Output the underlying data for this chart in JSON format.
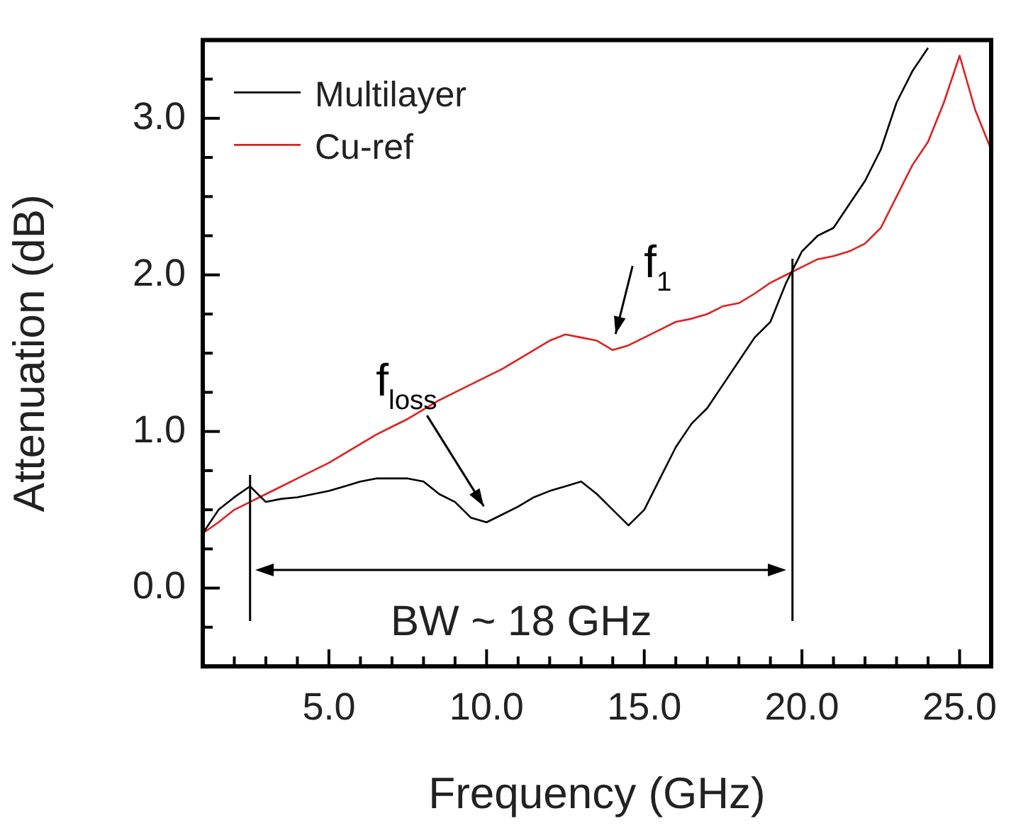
{
  "chart_data": {
    "type": "line",
    "xlabel": "Frequency (GHz)",
    "ylabel": "Attenuation (dB)",
    "x": [
      1,
      1.5,
      2,
      2.5,
      3,
      3.5,
      4,
      4.5,
      5,
      5.5,
      6,
      6.5,
      7,
      7.5,
      8,
      8.5,
      9,
      9.5,
      10,
      10.5,
      11,
      11.5,
      12,
      12.5,
      13,
      13.5,
      14,
      14.5,
      15,
      15.5,
      16,
      16.5,
      17,
      17.5,
      18,
      18.5,
      19,
      19.5,
      20,
      20.5,
      21,
      21.5,
      22,
      22.5,
      23,
      23.5,
      24,
      24.5,
      25,
      25.5,
      26
    ],
    "series": [
      {
        "name": "Multilayer",
        "color": "#000000",
        "values": [
          0.35,
          0.5,
          0.58,
          0.65,
          0.55,
          0.57,
          0.58,
          0.6,
          0.62,
          0.65,
          0.68,
          0.7,
          0.7,
          0.7,
          0.68,
          0.6,
          0.55,
          0.45,
          0.42,
          0.47,
          0.52,
          0.58,
          0.62,
          0.65,
          0.68,
          0.6,
          0.5,
          0.4,
          0.5,
          0.7,
          0.9,
          1.05,
          1.15,
          1.3,
          1.45,
          1.6,
          1.7,
          1.95,
          2.15,
          2.25,
          2.3,
          2.45,
          2.6,
          2.8,
          3.1,
          3.3,
          3.45,
          null,
          null,
          null,
          null
        ]
      },
      {
        "name": "Cu-ref",
        "color": "#e02020",
        "values": [
          0.35,
          0.42,
          0.5,
          0.55,
          0.6,
          0.65,
          0.7,
          0.75,
          0.8,
          0.86,
          0.92,
          0.98,
          1.03,
          1.08,
          1.14,
          1.2,
          1.25,
          1.3,
          1.35,
          1.4,
          1.46,
          1.52,
          1.58,
          1.62,
          1.6,
          1.58,
          1.52,
          1.55,
          1.6,
          1.65,
          1.7,
          1.72,
          1.75,
          1.8,
          1.82,
          1.88,
          1.95,
          2.0,
          2.05,
          2.1,
          2.12,
          2.15,
          2.2,
          2.3,
          2.5,
          2.7,
          2.85,
          3.1,
          3.4,
          3.05,
          2.8
        ]
      }
    ],
    "xlim": [
      1,
      26
    ],
    "xticks": [
      {
        "value": 1,
        "label": null
      },
      {
        "value": 2,
        "label": null
      },
      {
        "value": 3,
        "label": null
      },
      {
        "value": 4,
        "label": null
      },
      {
        "value": 5,
        "label": "5.0"
      },
      {
        "value": 6,
        "label": null
      },
      {
        "value": 7,
        "label": null
      },
      {
        "value": 8,
        "label": null
      },
      {
        "value": 9,
        "label": null
      },
      {
        "value": 10,
        "label": "10.0"
      },
      {
        "value": 11,
        "label": null
      },
      {
        "value": 12,
        "label": null
      },
      {
        "value": 13,
        "label": null
      },
      {
        "value": 14,
        "label": null
      },
      {
        "value": 15,
        "label": "15.0"
      },
      {
        "value": 16,
        "label": null
      },
      {
        "value": 17,
        "label": null
      },
      {
        "value": 18,
        "label": null
      },
      {
        "value": 19,
        "label": null
      },
      {
        "value": 20,
        "label": "20.0"
      },
      {
        "value": 21,
        "label": null
      },
      {
        "value": 22,
        "label": null
      },
      {
        "value": 23,
        "label": null
      },
      {
        "value": 24,
        "label": null
      },
      {
        "value": 25,
        "label": "25.0"
      },
      {
        "value": 26,
        "label": null
      }
    ],
    "ylim": [
      -0.5,
      3.5
    ],
    "yticks": [
      {
        "value": -0.5,
        "label": null
      },
      {
        "value": -0.25,
        "label": null
      },
      {
        "value": 0,
        "label": "0.0"
      },
      {
        "value": 0.25,
        "label": null
      },
      {
        "value": 0.5,
        "label": null
      },
      {
        "value": 0.75,
        "label": null
      },
      {
        "value": 1,
        "label": "1.0"
      },
      {
        "value": 1.25,
        "label": null
      },
      {
        "value": 1.5,
        "label": null
      },
      {
        "value": 1.75,
        "label": null
      },
      {
        "value": 2,
        "label": "2.0"
      },
      {
        "value": 2.25,
        "label": null
      },
      {
        "value": 2.5,
        "label": null
      },
      {
        "value": 2.75,
        "label": null
      },
      {
        "value": 3,
        "label": "3.0"
      },
      {
        "value": 3.25,
        "label": null
      },
      {
        "value": 3.5,
        "label": null
      }
    ],
    "ref_lines": [
      {
        "axis": "x",
        "value": 2.5
      },
      {
        "axis": "x",
        "value": 19.7
      }
    ],
    "annotations": [
      "BW ~ 18 GHz",
      {
        "text": "f$_{1}$",
        "x": 14,
        "y": 1.55
      },
      {
        "text": "f$_{loss}$",
        "x": 10,
        "y": 0.45
      }
    ],
    "legend": "top left",
    "marker": "none",
    "line_style": "solid",
    "grid": false
  }
}
